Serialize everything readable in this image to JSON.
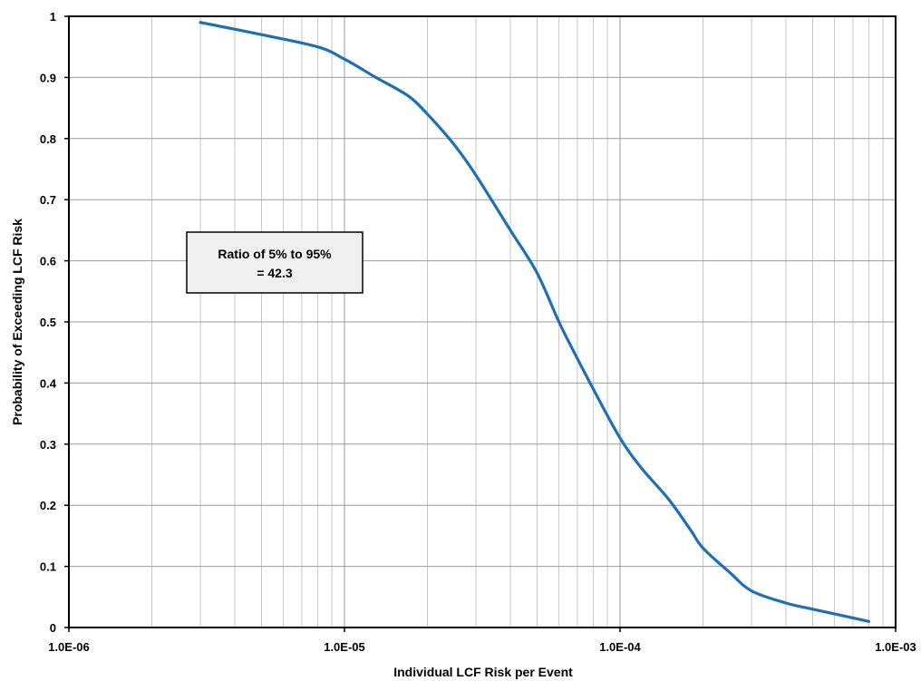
{
  "chart_data": {
    "type": "line",
    "xlabel": "Individual LCF Risk per Event",
    "ylabel": "Probability of Exceeding LCF Risk",
    "xscale": "log",
    "xlim": [
      1e-06,
      0.001
    ],
    "ylim": [
      0,
      1
    ],
    "grid": true,
    "x_ticks": [
      {
        "value": 1e-06,
        "label": "1.0E-06"
      },
      {
        "value": 1e-05,
        "label": "1.0E-05"
      },
      {
        "value": 0.0001,
        "label": "1.0E-04"
      },
      {
        "value": 0.001,
        "label": "1.0E-03"
      }
    ],
    "y_ticks": [
      {
        "value": 0,
        "label": "0"
      },
      {
        "value": 0.1,
        "label": "0.1"
      },
      {
        "value": 0.2,
        "label": "0.2"
      },
      {
        "value": 0.3,
        "label": "0.3"
      },
      {
        "value": 0.4,
        "label": "0.4"
      },
      {
        "value": 0.5,
        "label": "0.5"
      },
      {
        "value": 0.6,
        "label": "0.6"
      },
      {
        "value": 0.7,
        "label": "0.7"
      },
      {
        "value": 0.8,
        "label": "0.8"
      },
      {
        "value": 0.9,
        "label": "0.9"
      },
      {
        "value": 1,
        "label": "1"
      }
    ],
    "series": [
      {
        "color": "#1f6fb5",
        "points": [
          [
            3e-06,
            0.99
          ],
          [
            5e-06,
            0.97
          ],
          [
            8e-06,
            0.95
          ],
          [
            1e-05,
            0.93
          ],
          [
            1.3e-05,
            0.9
          ],
          [
            1.7e-05,
            0.87
          ],
          [
            2e-05,
            0.84
          ],
          [
            2.5e-05,
            0.79
          ],
          [
            3e-05,
            0.74
          ],
          [
            4e-05,
            0.65
          ],
          [
            5e-05,
            0.58
          ],
          [
            6e-05,
            0.5
          ],
          [
            7e-05,
            0.44
          ],
          [
            8e-05,
            0.39
          ],
          [
            0.0001,
            0.31
          ],
          [
            0.00012,
            0.26
          ],
          [
            0.00015,
            0.21
          ],
          [
            0.00018,
            0.16
          ],
          [
            0.0002,
            0.13
          ],
          [
            0.00025,
            0.09
          ],
          [
            0.0003,
            0.06
          ],
          [
            0.0004,
            0.04
          ],
          [
            0.0005,
            0.03
          ],
          [
            0.0008,
            0.01
          ]
        ]
      }
    ],
    "annotation": {
      "lines": [
        "Ratio of 5% to 95%",
        "= 42.3"
      ],
      "background": "#f0f0f0"
    }
  }
}
